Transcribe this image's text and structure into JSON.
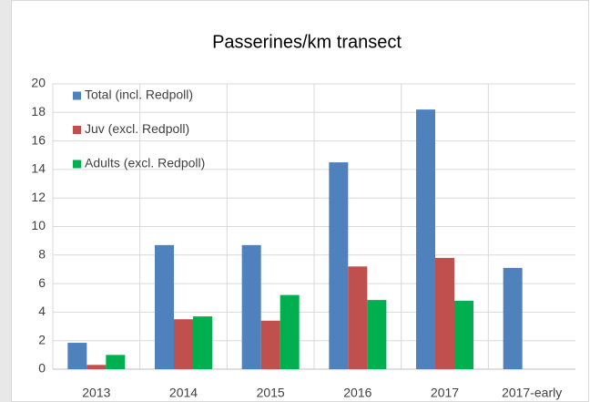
{
  "chart_data": {
    "type": "bar",
    "title": "Passerines/km transect",
    "categories": [
      "2013",
      "2014",
      "2015",
      "2016",
      "2017",
      "2017-early"
    ],
    "series": [
      {
        "name": "Total (incl. Redpoll)",
        "color": "#4f81bd",
        "values": [
          1.85,
          8.7,
          8.7,
          14.5,
          18.2,
          7.1
        ]
      },
      {
        "name": "Juv (excl. Redpoll)",
        "color": "#c0504d",
        "values": [
          0.3,
          3.5,
          3.4,
          7.2,
          7.8,
          null
        ]
      },
      {
        "name": "Adults (excl. Redpoll)",
        "color": "#00b050",
        "values": [
          1.0,
          3.7,
          5.2,
          4.85,
          4.8,
          null
        ]
      }
    ],
    "ylim": [
      0,
      20
    ],
    "yticks": [
      0,
      2,
      4,
      6,
      8,
      10,
      12,
      14,
      16,
      18,
      20
    ],
    "grid": true,
    "legend": "top-left"
  }
}
